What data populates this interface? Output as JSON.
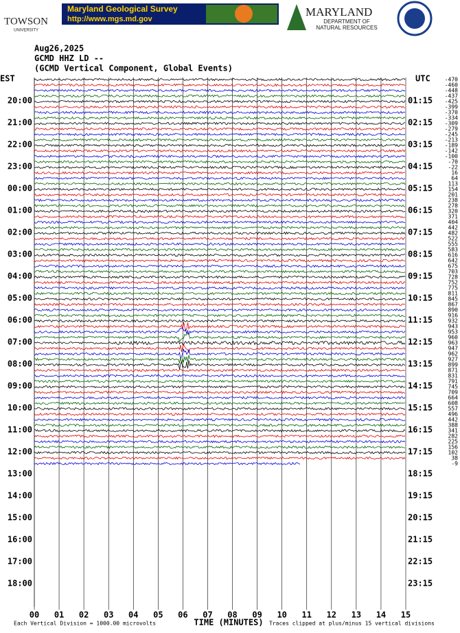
{
  "header": {
    "university": "TOWSON",
    "university_sub": "UNIVERSITY",
    "survey": "Maryland Geological Survey",
    "survey_url": "http://www.mgs.md.gov",
    "state": "MARYLAND",
    "department": "DEPARTMENT OF",
    "department2": "NATURAL RESOURCES"
  },
  "chart_data": {
    "type": "helicorder",
    "title_lines": [
      "Aug26,2025",
      "GCMD HHZ LD --",
      "(GCMD Vertical Component, Global Events)"
    ],
    "left_label": "EST",
    "right_label": "UTC",
    "left_hours": [
      null,
      "20:00",
      "21:00",
      "22:00",
      "23:00",
      "00:00",
      "01:00",
      "02:00",
      "03:00",
      "04:00",
      "05:00",
      "06:00",
      "07:00",
      "08:00",
      "09:00",
      "10:00",
      "11:00",
      "12:00",
      "13:00",
      "14:00",
      "15:00",
      "16:00",
      "17:00",
      "18:00"
    ],
    "right_hours": [
      null,
      "01:15",
      "02:15",
      "03:15",
      "04:15",
      "05:15",
      "06:15",
      "07:15",
      "08:15",
      "09:15",
      "10:15",
      "11:15",
      "12:15",
      "13:15",
      "14:15",
      "15:15",
      "16:15",
      "17:15",
      "18:15",
      "19:15",
      "20:15",
      "21:15",
      "22:15",
      "23:15"
    ],
    "xlabel": "TIME (MINUTES)",
    "xlim": [
      0,
      15
    ],
    "xticks": [
      {
        "value": 0,
        "label": "00"
      },
      {
        "value": 1,
        "label": "01"
      },
      {
        "value": 2,
        "label": "02"
      },
      {
        "value": 3,
        "label": "03"
      },
      {
        "value": 4,
        "label": "04"
      },
      {
        "value": 5,
        "label": "05"
      },
      {
        "value": 6,
        "label": "06"
      },
      {
        "value": 7,
        "label": "07"
      },
      {
        "value": 8,
        "label": "08"
      },
      {
        "value": 9,
        "label": "09"
      },
      10,
      11,
      12,
      13,
      14,
      15
    ],
    "trace_colors": [
      "#000000",
      "#e00000",
      "#0000e0",
      "#006400"
    ],
    "dc_offsets": [
      -470,
      -460,
      -448,
      -437,
      -425,
      -399,
      -370,
      -334,
      -309,
      -279,
      -245,
      -213,
      -189,
      -142,
      -100,
      -70,
      -22,
      16,
      64,
      113,
      154,
      201,
      238,
      278,
      320,
      371,
      404,
      442,
      482,
      522,
      555,
      583,
      616,
      642,
      675,
      703,
      728,
      752,
      775,
      811,
      845,
      867,
      890,
      916,
      932,
      943,
      953,
      960,
      963,
      947,
      962,
      927,
      899,
      871,
      831,
      791,
      745,
      709,
      664,
      608,
      557,
      496,
      442,
      388,
      341,
      282,
      225,
      156,
      102,
      38,
      -9
    ],
    "footer_left": "Each Vertical Division = 1000.00 microvolts",
    "footer_right": "Traces clipped at plus/minus 15 vertical divisions"
  }
}
